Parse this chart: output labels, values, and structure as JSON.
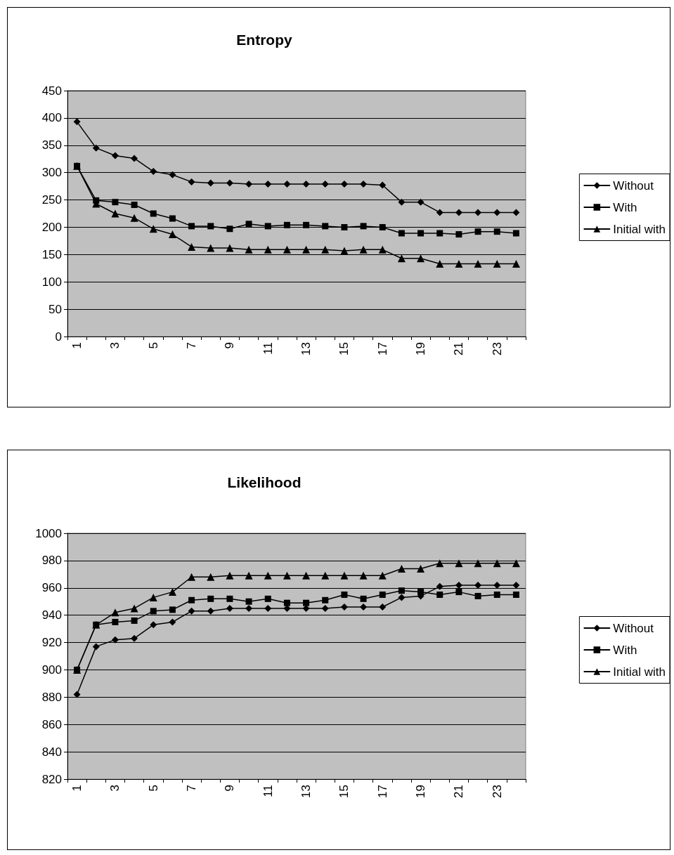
{
  "chart_data": [
    {
      "type": "line",
      "title": "Entropy",
      "categories": [
        "1",
        null,
        "3",
        null,
        "5",
        null,
        "7",
        null,
        "9",
        null,
        "11",
        null,
        "13",
        null,
        "15",
        null,
        "17",
        null,
        "19",
        null,
        "21",
        null,
        "23",
        null
      ],
      "ylim": [
        0,
        450
      ],
      "yticks": [
        0,
        50,
        100,
        150,
        200,
        250,
        300,
        350,
        400,
        450
      ],
      "grid": "y",
      "legend": "right",
      "series": [
        {
          "name": "Without",
          "color": "#000000",
          "marker": "diamond",
          "values": [
            393,
            345,
            331,
            326,
            302,
            296,
            283,
            281,
            281,
            279,
            279,
            279,
            279,
            279,
            279,
            279,
            277,
            246,
            246,
            227,
            227,
            227,
            227,
            227
          ]
        },
        {
          "name": "With",
          "color": "#000000",
          "marker": "square",
          "values": [
            312,
            249,
            246,
            241,
            225,
            216,
            202,
            202,
            197,
            206,
            202,
            204,
            204,
            202,
            200,
            202,
            200,
            189,
            189,
            189,
            187,
            192,
            192,
            189
          ]
        },
        {
          "name": "Initial with",
          "color": "#000000",
          "marker": "triangle",
          "values": [
            312,
            243,
            225,
            217,
            197,
            187,
            164,
            162,
            162,
            159,
            159,
            159,
            159,
            159,
            157,
            159,
            159,
            143,
            143,
            133,
            133,
            133,
            133,
            133
          ]
        }
      ]
    },
    {
      "type": "line",
      "title": "Likelihood",
      "categories": [
        "1",
        null,
        "3",
        null,
        "5",
        null,
        "7",
        null,
        "9",
        null,
        "11",
        null,
        "13",
        null,
        "15",
        null,
        "17",
        null,
        "19",
        null,
        "21",
        null,
        "23",
        null
      ],
      "ylim": [
        820,
        1000
      ],
      "yticks": [
        820,
        840,
        860,
        880,
        900,
        920,
        940,
        960,
        980,
        1000
      ],
      "grid": "y",
      "legend": "right",
      "series": [
        {
          "name": "Without",
          "color": "#000000",
          "marker": "diamond",
          "values": [
            882,
            917,
            922,
            923,
            933,
            935,
            943,
            943,
            945,
            945,
            945,
            945,
            945,
            945,
            946,
            946,
            946,
            953,
            954,
            961,
            962,
            962,
            962,
            962
          ]
        },
        {
          "name": "With",
          "color": "#000000",
          "marker": "square",
          "values": [
            900,
            933,
            935,
            936,
            943,
            944,
            951,
            952,
            952,
            950,
            952,
            949,
            949,
            951,
            955,
            952,
            955,
            958,
            957,
            955,
            957,
            954,
            955,
            955
          ]
        },
        {
          "name": "Initial with",
          "color": "#000000",
          "marker": "triangle",
          "values": [
            900,
            933,
            942,
            945,
            953,
            957,
            968,
            968,
            969,
            969,
            969,
            969,
            969,
            969,
            969,
            969,
            969,
            974,
            974,
            978,
            978,
            978,
            978,
            978
          ]
        }
      ]
    }
  ]
}
